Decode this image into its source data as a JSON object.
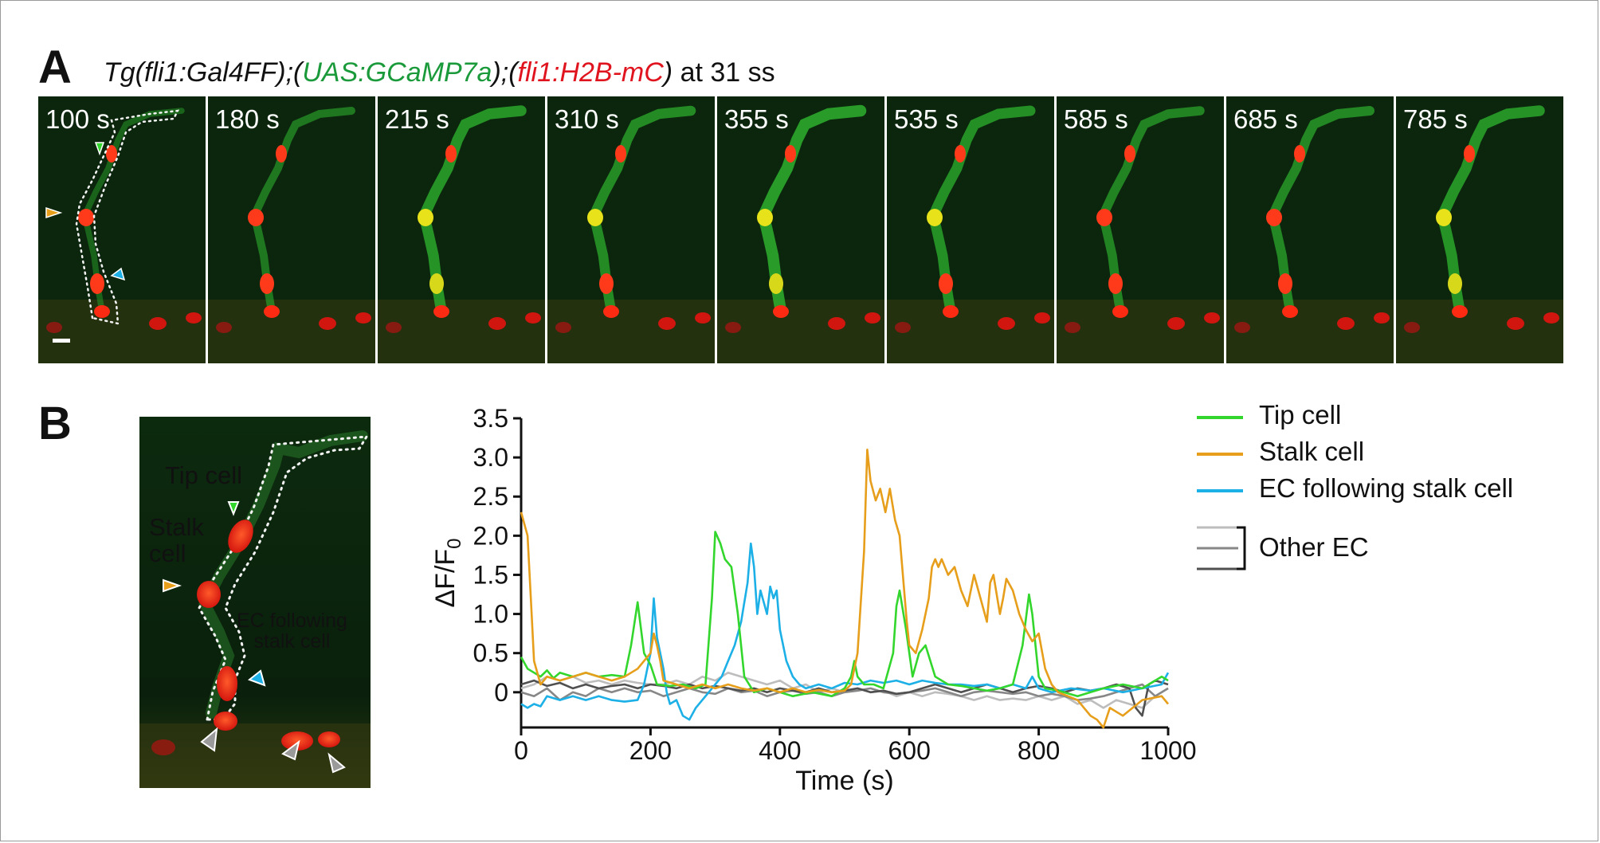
{
  "panel_a": {
    "letter": "A",
    "title_parts": [
      "Tg(fli1:Gal4FF);(",
      "UAS:GCaMP7a",
      ");(",
      "fli1:H2B-mC",
      ")",
      " at 31 ss"
    ],
    "frames": [
      "100 s",
      "180 s",
      "215 s",
      "310 s",
      "355 s",
      "535 s",
      "585 s",
      "685 s",
      "785 s"
    ]
  },
  "panel_b": {
    "letter": "B",
    "image_labels": {
      "tip_cell": "Tip cell",
      "stalk_cell_line1": "Stalk",
      "stalk_cell_line2": "cell",
      "ec_following_line1": "EC following",
      "ec_following_line2": "stalk cell"
    },
    "colors": {
      "tip": "#33d62c",
      "stalk": "#e69e1b",
      "ec_following": "#1cb0e6",
      "other_light": "#bdbdbd",
      "other_mid": "#878787",
      "other_dark": "#505050",
      "tip_label": "#3dd43d",
      "stalk_label": "#e9a030",
      "ec_label": "#2ab2ee",
      "arrow_gray": "#9a9a9a"
    },
    "legend": {
      "tip": "Tip cell",
      "stalk": "Stalk cell",
      "ec_following": "EC following stalk cell",
      "other": "Other EC"
    }
  },
  "chart_data": {
    "type": "line",
    "xlabel": "Time (s)",
    "ylabel": "ΔF/F",
    "ylabel_sub": "0",
    "xlim": [
      0,
      1000
    ],
    "ylim": [
      -0.45,
      3.5
    ],
    "xticks": [
      0,
      200,
      400,
      600,
      800,
      1000
    ],
    "yticks": [
      0,
      0.5,
      1.0,
      1.5,
      2.0,
      2.5,
      3.0,
      3.5
    ],
    "ytick_labels": [
      "0",
      "0.5",
      "1.0",
      "1.5",
      "2.0",
      "2.5",
      "3.0",
      "3.5"
    ],
    "series": [
      {
        "name": "Tip cell",
        "color": "#33d62c",
        "x": [
          0,
          10,
          20,
          30,
          40,
          50,
          60,
          80,
          100,
          120,
          140,
          160,
          170,
          180,
          190,
          200,
          210,
          230,
          250,
          270,
          285,
          295,
          300,
          308,
          315,
          325,
          335,
          345,
          360,
          380,
          400,
          420,
          450,
          480,
          500,
          510,
          515,
          520,
          530,
          545,
          560,
          575,
          580,
          585,
          595,
          605,
          615,
          625,
          640,
          660,
          680,
          700,
          720,
          740,
          760,
          775,
          785,
          790,
          800,
          810,
          830,
          860,
          880,
          900,
          930,
          960,
          990,
          1000
        ],
        "y": [
          0.45,
          0.3,
          0.25,
          0.2,
          0.28,
          0.18,
          0.25,
          0.2,
          0.25,
          0.2,
          0.22,
          0.2,
          0.6,
          1.15,
          0.5,
          0.35,
          0.1,
          0.08,
          0.1,
          0.05,
          0.1,
          1.2,
          2.05,
          1.9,
          1.7,
          1.6,
          1.0,
          0.2,
          0.0,
          0.05,
          0.0,
          -0.05,
          0.0,
          -0.05,
          0.05,
          0.2,
          0.4,
          0.2,
          0.1,
          0.1,
          0.05,
          0.5,
          1.1,
          1.3,
          0.8,
          0.2,
          0.5,
          0.6,
          0.2,
          0.1,
          0.08,
          0.05,
          0.02,
          0.05,
          0.1,
          0.6,
          1.25,
          1.0,
          0.2,
          0.05,
          0.02,
          -0.05,
          0.0,
          0.05,
          0.1,
          0.05,
          0.2,
          0.15
        ]
      },
      {
        "name": "Stalk cell",
        "color": "#e69e1b",
        "x": [
          0,
          10,
          15,
          20,
          30,
          40,
          60,
          80,
          100,
          120,
          140,
          160,
          180,
          200,
          205,
          210,
          215,
          220,
          240,
          260,
          280,
          300,
          320,
          340,
          360,
          380,
          400,
          420,
          440,
          460,
          480,
          500,
          510,
          520,
          530,
          535,
          540,
          548,
          555,
          563,
          570,
          578,
          585,
          590,
          596,
          600,
          610,
          620,
          630,
          635,
          640,
          645,
          650,
          660,
          670,
          680,
          690,
          700,
          710,
          720,
          725,
          730,
          740,
          745,
          750,
          760,
          770,
          780,
          790,
          800,
          810,
          820,
          830,
          845,
          860,
          870,
          880,
          890,
          900,
          910,
          930,
          960,
          990,
          1000
        ],
        "y": [
          2.3,
          2.0,
          1.2,
          0.4,
          0.1,
          0.2,
          0.15,
          0.2,
          0.25,
          0.2,
          0.15,
          0.2,
          0.3,
          0.5,
          0.75,
          0.6,
          0.4,
          0.15,
          0.1,
          0.05,
          0.1,
          0.05,
          0.1,
          0.05,
          0.02,
          0.05,
          0.0,
          0.05,
          0.0,
          0.03,
          0.0,
          0.02,
          0.1,
          0.5,
          1.8,
          3.1,
          2.7,
          2.45,
          2.6,
          2.3,
          2.6,
          2.2,
          2.0,
          1.5,
          0.9,
          0.6,
          0.5,
          0.8,
          1.2,
          1.6,
          1.7,
          1.6,
          1.7,
          1.5,
          1.6,
          1.3,
          1.1,
          1.5,
          1.2,
          0.9,
          1.4,
          1.5,
          1.0,
          1.2,
          1.45,
          1.3,
          1.0,
          0.8,
          0.65,
          0.75,
          0.3,
          0.1,
          0.0,
          -0.05,
          -0.1,
          -0.2,
          -0.3,
          -0.35,
          -0.45,
          -0.2,
          -0.3,
          -0.1,
          -0.05,
          -0.15
        ]
      },
      {
        "name": "EC following stalk cell",
        "color": "#1cb0e6",
        "x": [
          0,
          10,
          20,
          30,
          40,
          60,
          80,
          100,
          120,
          140,
          160,
          180,
          190,
          200,
          205,
          210,
          215,
          220,
          225,
          230,
          240,
          250,
          260,
          270,
          280,
          290,
          300,
          310,
          320,
          330,
          340,
          350,
          355,
          360,
          365,
          370,
          375,
          380,
          385,
          390,
          395,
          400,
          410,
          420,
          430,
          440,
          460,
          480,
          500,
          520,
          540,
          560,
          580,
          600,
          620,
          640,
          660,
          680,
          700,
          720,
          740,
          760,
          780,
          790,
          800,
          820,
          850,
          880,
          900,
          930,
          960,
          990,
          1000
        ],
        "y": [
          -0.15,
          -0.2,
          -0.15,
          -0.18,
          -0.05,
          -0.1,
          -0.05,
          -0.1,
          -0.05,
          -0.1,
          -0.12,
          -0.1,
          0.1,
          0.5,
          1.2,
          0.7,
          0.5,
          0.3,
          0.0,
          -0.15,
          -0.1,
          -0.3,
          -0.35,
          -0.2,
          -0.1,
          0.0,
          0.1,
          0.2,
          0.4,
          0.6,
          0.9,
          1.4,
          1.9,
          1.6,
          1.0,
          1.3,
          1.15,
          1.0,
          1.35,
          1.2,
          1.3,
          0.8,
          0.4,
          0.2,
          0.1,
          0.05,
          0.1,
          0.05,
          0.12,
          0.1,
          0.15,
          0.12,
          0.15,
          0.1,
          0.15,
          0.12,
          0.1,
          0.1,
          0.08,
          0.1,
          0.05,
          0.1,
          0.05,
          0.2,
          0.05,
          0.0,
          0.05,
          0.02,
          0.05,
          0.0,
          0.05,
          0.1,
          0.25
        ]
      },
      {
        "name": "",
        "color": "#bdbdbd",
        "x": [
          0,
          20,
          40,
          60,
          80,
          100,
          120,
          140,
          160,
          180,
          200,
          220,
          240,
          260,
          280,
          300,
          320,
          340,
          360,
          380,
          400,
          420,
          440,
          460,
          480,
          500,
          520,
          540,
          560,
          580,
          600,
          620,
          640,
          660,
          680,
          700,
          720,
          740,
          760,
          780,
          800,
          820,
          840,
          860,
          880,
          900,
          920,
          940,
          960,
          980,
          1000
        ],
        "y": [
          0.05,
          0.1,
          0.2,
          0.15,
          0.2,
          0.12,
          0.15,
          0.1,
          0.15,
          0.12,
          0.1,
          0.1,
          0.15,
          0.1,
          0.2,
          0.15,
          0.25,
          0.2,
          0.15,
          0.1,
          0.15,
          0.05,
          0.1,
          0.0,
          0.05,
          0.0,
          0.05,
          0.0,
          0.02,
          -0.05,
          0.0,
          -0.05,
          0.0,
          -0.02,
          -0.05,
          -0.1,
          -0.05,
          -0.1,
          -0.08,
          -0.1,
          -0.05,
          -0.1,
          -0.05,
          -0.15,
          -0.1,
          -0.2,
          -0.1,
          -0.15,
          -0.2,
          -0.05,
          0.05
        ]
      },
      {
        "name": "",
        "color": "#878787",
        "x": [
          0,
          20,
          40,
          60,
          80,
          100,
          120,
          140,
          160,
          180,
          200,
          220,
          240,
          260,
          280,
          300,
          320,
          340,
          360,
          380,
          400,
          420,
          440,
          460,
          480,
          500,
          520,
          540,
          560,
          580,
          600,
          620,
          640,
          660,
          680,
          700,
          720,
          740,
          760,
          780,
          800,
          820,
          840,
          860,
          880,
          900,
          920,
          940,
          960,
          980,
          1000
        ],
        "y": [
          0.0,
          -0.05,
          0.05,
          -0.1,
          0.0,
          -0.05,
          0.05,
          0.0,
          0.05,
          0.0,
          0.02,
          -0.05,
          0.0,
          0.05,
          0.0,
          -0.02,
          0.05,
          0.0,
          0.02,
          -0.05,
          0.0,
          0.02,
          -0.02,
          0.0,
          -0.05,
          0.0,
          0.02,
          0.05,
          0.0,
          -0.02,
          0.0,
          0.02,
          0.05,
          0.0,
          -0.05,
          0.0,
          0.02,
          0.0,
          -0.02,
          0.0,
          -0.05,
          -0.02,
          -0.05,
          -0.1,
          -0.08,
          -0.05,
          0.0,
          0.05,
          0.1,
          -0.05,
          0.05
        ]
      },
      {
        "name": "",
        "color": "#505050",
        "x": [
          0,
          20,
          40,
          60,
          80,
          100,
          120,
          140,
          160,
          180,
          200,
          220,
          240,
          260,
          280,
          300,
          320,
          340,
          360,
          380,
          400,
          420,
          440,
          460,
          480,
          500,
          520,
          540,
          560,
          580,
          600,
          620,
          640,
          660,
          680,
          700,
          720,
          740,
          760,
          780,
          800,
          820,
          840,
          860,
          880,
          900,
          920,
          940,
          950,
          960,
          970,
          980,
          1000
        ],
        "y": [
          0.1,
          0.15,
          0.08,
          0.12,
          0.05,
          0.1,
          0.05,
          0.08,
          0.1,
          0.05,
          0.1,
          0.08,
          0.05,
          0.1,
          0.05,
          0.08,
          0.05,
          0.02,
          0.05,
          0.0,
          0.05,
          0.02,
          0.0,
          0.05,
          0.0,
          0.02,
          0.05,
          0.0,
          0.02,
          -0.02,
          0.0,
          0.05,
          0.1,
          0.05,
          0.0,
          0.05,
          0.1,
          0.05,
          0.0,
          0.05,
          0.08,
          0.05,
          0.0,
          0.05,
          0.02,
          0.05,
          0.1,
          0.05,
          -0.2,
          -0.3,
          0.1,
          0.15,
          0.1
        ]
      }
    ]
  }
}
